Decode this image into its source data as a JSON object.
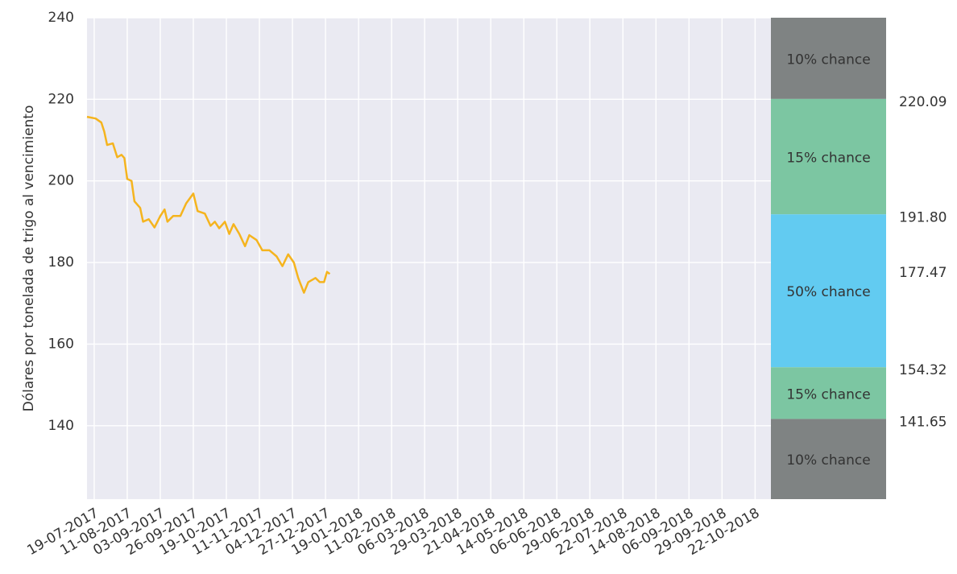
{
  "chart_data": {
    "type": "line",
    "y_label": "Dólares por tonelada de trigo al vencimiento",
    "color": "#f5b41e",
    "x": [
      "14-07-2017",
      "20-07-2017",
      "24-07-2017",
      "26-07-2017",
      "28-07-2017",
      "01-08-2017",
      "04-08-2017",
      "07-08-2017",
      "09-08-2017",
      "11-08-2017",
      "14-08-2017",
      "16-08-2017",
      "20-08-2017",
      "22-08-2017",
      "26-08-2017",
      "30-08-2017",
      "03-09-2017",
      "06-09-2017",
      "08-09-2017",
      "12-09-2017",
      "17-09-2017",
      "21-09-2017",
      "26-09-2017",
      "29-09-2017",
      "04-10-2017",
      "08-10-2017",
      "11-10-2017",
      "14-10-2017",
      "18-10-2017",
      "21-10-2017",
      "24-10-2017",
      "28-10-2017",
      "01-11-2017",
      "04-11-2017",
      "09-11-2017",
      "13-11-2017",
      "18-11-2017",
      "23-11-2017",
      "27-11-2017",
      "01-12-2017",
      "05-12-2017",
      "08-12-2017",
      "12-12-2017",
      "15-12-2017",
      "20-12-2017",
      "23-12-2017",
      "26-12-2017",
      "28-12-2017",
      "30-12-2017"
    ],
    "values": [
      215.7,
      215.3,
      214.3,
      212.1,
      208.8,
      209.2,
      205.8,
      206.4,
      205.6,
      200.5,
      200,
      195,
      193.4,
      190,
      190.6,
      188.6,
      191.4,
      193,
      190,
      191.4,
      191.4,
      194.5,
      196.9,
      192.6,
      192,
      189,
      190,
      188.4,
      190,
      187,
      189.4,
      187,
      184,
      186.7,
      185.5,
      183,
      183,
      181.5,
      179.1,
      182,
      180,
      176.2,
      172.6,
      175.2,
      176.2,
      175.2,
      175.2,
      177.7,
      177.2
    ],
    "xlim": [
      "14-07-2017",
      "02-11-2018"
    ],
    "xticks": [
      "19-07-2017",
      "11-08-2017",
      "03-09-2017",
      "26-09-2017",
      "19-10-2017",
      "11-11-2017",
      "04-12-2017",
      "27-12-2017",
      "19-01-2018",
      "11-02-2018",
      "06-03-2018",
      "29-03-2018",
      "21-04-2018",
      "14-05-2018",
      "06-06-2018",
      "29-06-2018",
      "22-07-2018",
      "14-08-2018",
      "06-09-2018",
      "29-09-2018",
      "22-10-2018"
    ],
    "ylim": [
      122,
      240
    ],
    "yticks": [
      140,
      160,
      180,
      200,
      220,
      240
    ],
    "grid": true,
    "levels": [
      220.09,
      {
        "value": 191.8,
        "label": "191.80"
      },
      154.32,
      141.65
    ],
    "median": 177.47,
    "bands": [
      {
        "label": "10% chance",
        "color": "#7f8383"
      },
      {
        "label": "15% chance",
        "color": "#7cc6a2"
      },
      {
        "label": "50% chance",
        "color": "#62cbf1"
      },
      {
        "label": "15% chance",
        "color": "#7cc6a2"
      },
      {
        "label": "10% chance",
        "color": "#7f8383"
      }
    ]
  }
}
